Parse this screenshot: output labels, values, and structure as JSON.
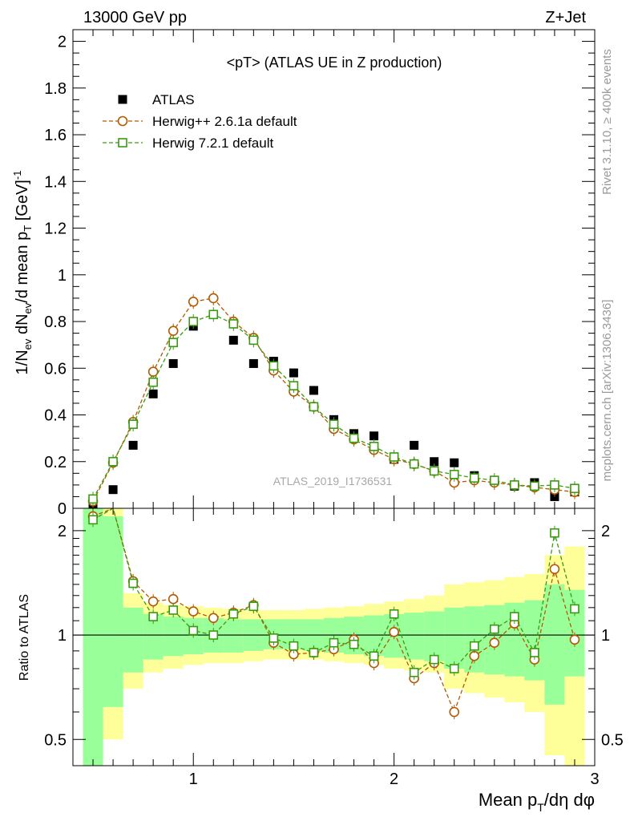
{
  "header": {
    "left": "13000 GeV pp",
    "right": "Z+Jet"
  },
  "side_text": {
    "rivet": "Rivet 3.1.10, ≥ 400k events",
    "mcplots": "mcplots.cern.ch [arXiv:1306.3436]"
  },
  "chart_data": [
    {
      "type": "scatter",
      "panel": "main",
      "title": "<pT> (ATLAS UE in Z production)",
      "watermark": "ATLAS_2019_I1736531",
      "ylabel": "1/N_ev dN_ev/d mean p_T [GeV]^-1",
      "xlim": [
        0.4,
        3.0
      ],
      "ylim": [
        0,
        2.05
      ],
      "yticks": [
        0,
        0.2,
        0.4,
        0.6,
        0.8,
        1,
        1.2,
        1.4,
        1.6,
        1.8,
        2
      ],
      "ytick_labels": [
        "0",
        "0.2",
        "0.4",
        "0.6",
        "0.8",
        "1",
        "1.2",
        "1.4",
        "1.6",
        "1.8",
        "2"
      ],
      "legend": "top-left",
      "series": [
        {
          "name": "ATLAS",
          "marker": "filled-square",
          "color": "#000000",
          "x": [
            0.5,
            0.6,
            0.7,
            0.8,
            0.9,
            1.0,
            1.1,
            1.2,
            1.3,
            1.4,
            1.5,
            1.6,
            1.7,
            1.8,
            1.9,
            2.0,
            2.1,
            2.2,
            2.3,
            2.4,
            2.5,
            2.6,
            2.7,
            2.8,
            2.9
          ],
          "y": [
            0.01,
            0.08,
            0.27,
            0.49,
            0.62,
            0.78,
            0.83,
            0.72,
            0.62,
            0.63,
            0.58,
            0.505,
            0.38,
            0.32,
            0.31,
            0.21,
            0.27,
            0.2,
            0.195,
            0.14,
            0.12,
            0.095,
            0.11,
            0.05,
            0.07
          ]
        },
        {
          "name": "Herwig++ 2.6.1a default",
          "marker": "open-circle",
          "color": "#b35900",
          "x": [
            0.5,
            0.6,
            0.7,
            0.8,
            0.9,
            1.0,
            1.1,
            1.2,
            1.3,
            1.4,
            1.5,
            1.6,
            1.7,
            1.8,
            1.9,
            2.0,
            2.1,
            2.2,
            2.3,
            2.4,
            2.5,
            2.6,
            2.7,
            2.8,
            2.9
          ],
          "y": [
            0.03,
            0.195,
            0.37,
            0.585,
            0.76,
            0.885,
            0.9,
            0.8,
            0.73,
            0.59,
            0.5,
            0.435,
            0.34,
            0.295,
            0.25,
            0.21,
            0.19,
            0.16,
            0.11,
            0.12,
            0.11,
            0.1,
            0.09,
            0.08,
            0.07
          ]
        },
        {
          "name": "Herwig 7.2.1 default",
          "marker": "open-square",
          "color": "#3a9a10",
          "x": [
            0.5,
            0.6,
            0.7,
            0.8,
            0.9,
            1.0,
            1.1,
            1.2,
            1.3,
            1.4,
            1.5,
            1.6,
            1.7,
            1.8,
            1.9,
            2.0,
            2.1,
            2.2,
            2.3,
            2.4,
            2.5,
            2.6,
            2.7,
            2.8,
            2.9
          ],
          "y": [
            0.04,
            0.2,
            0.36,
            0.54,
            0.71,
            0.8,
            0.83,
            0.79,
            0.72,
            0.61,
            0.525,
            0.435,
            0.36,
            0.3,
            0.265,
            0.22,
            0.19,
            0.16,
            0.145,
            0.13,
            0.12,
            0.1,
            0.095,
            0.1,
            0.085
          ]
        }
      ]
    },
    {
      "type": "scatter",
      "panel": "ratio",
      "ylabel": "Ratio to ATLAS",
      "xlabel": "Mean p_T/dη dφ",
      "xlim": [
        0.4,
        3.0
      ],
      "ylim": [
        0.42,
        2.32
      ],
      "yscale": "log",
      "xticks": [
        1,
        2,
        3
      ],
      "xtick_labels": [
        "1",
        "2",
        "3"
      ],
      "yticks": [
        0.5,
        1,
        2
      ],
      "ytick_labels": [
        "0.5",
        "1",
        "2"
      ],
      "reference_line": 1,
      "band_edges": [
        0.45,
        0.55,
        0.65,
        0.75,
        0.85,
        0.95,
        1.05,
        1.15,
        1.25,
        1.35,
        1.45,
        1.55,
        1.65,
        1.75,
        1.85,
        1.95,
        2.05,
        2.15,
        2.25,
        2.35,
        2.45,
        2.55,
        2.65,
        2.75,
        2.85,
        2.95
      ],
      "yellow_band_low": [
        0.1,
        0.5,
        0.7,
        0.78,
        0.8,
        0.82,
        0.83,
        0.83,
        0.84,
        0.85,
        0.85,
        0.85,
        0.84,
        0.83,
        0.82,
        0.8,
        0.79,
        0.78,
        0.7,
        0.68,
        0.66,
        0.64,
        0.6,
        0.45,
        0.4
      ],
      "yellow_band_high": [
        3.5,
        2.7,
        1.32,
        1.24,
        1.22,
        1.21,
        1.2,
        1.19,
        1.18,
        1.18,
        1.18,
        1.19,
        1.2,
        1.21,
        1.23,
        1.25,
        1.27,
        1.3,
        1.4,
        1.42,
        1.44,
        1.47,
        1.5,
        1.7,
        1.8
      ],
      "green_band_low": [
        0.3,
        0.62,
        0.78,
        0.85,
        0.87,
        0.88,
        0.89,
        0.89,
        0.9,
        0.91,
        0.91,
        0.9,
        0.89,
        0.88,
        0.87,
        0.86,
        0.85,
        0.84,
        0.8,
        0.78,
        0.77,
        0.76,
        0.74,
        0.63,
        0.76
      ],
      "green_band_high": [
        3.0,
        2.2,
        1.2,
        1.15,
        1.13,
        1.12,
        1.12,
        1.11,
        1.11,
        1.11,
        1.11,
        1.11,
        1.12,
        1.13,
        1.14,
        1.15,
        1.16,
        1.17,
        1.2,
        1.21,
        1.22,
        1.24,
        1.26,
        1.4,
        1.35
      ],
      "series": [
        {
          "name": "Herwig++ 2.6.1a default",
          "marker": "open-circle",
          "color": "#b35900",
          "x": [
            0.5,
            0.6,
            0.7,
            0.8,
            0.9,
            1.0,
            1.1,
            1.2,
            1.3,
            1.4,
            1.5,
            1.6,
            1.7,
            1.8,
            1.9,
            2.0,
            2.1,
            2.2,
            2.3,
            2.4,
            2.5,
            2.6,
            2.7,
            2.8,
            2.9
          ],
          "y": [
            2.2,
            2.5,
            1.43,
            1.25,
            1.27,
            1.17,
            1.12,
            1.16,
            1.22,
            0.95,
            0.88,
            0.89,
            0.91,
            0.97,
            0.83,
            1.02,
            0.75,
            0.83,
            0.6,
            0.87,
            0.95,
            1.08,
            0.85,
            1.55,
            0.97
          ]
        },
        {
          "name": "Herwig 7.2.1 default",
          "marker": "open-square",
          "color": "#3a9a10",
          "x": [
            0.5,
            0.6,
            0.7,
            0.8,
            0.9,
            1.0,
            1.1,
            1.2,
            1.3,
            1.4,
            1.5,
            1.6,
            1.7,
            1.8,
            1.9,
            2.0,
            2.1,
            2.2,
            2.3,
            2.4,
            2.5,
            2.6,
            2.7,
            2.8,
            2.9
          ],
          "y": [
            2.15,
            2.5,
            1.41,
            1.13,
            1.18,
            1.03,
            1.0,
            1.15,
            1.21,
            0.98,
            0.93,
            0.89,
            0.95,
            0.94,
            0.87,
            1.15,
            0.78,
            0.85,
            0.8,
            0.93,
            1.04,
            1.13,
            0.89,
            1.97,
            1.19
          ]
        }
      ]
    }
  ]
}
